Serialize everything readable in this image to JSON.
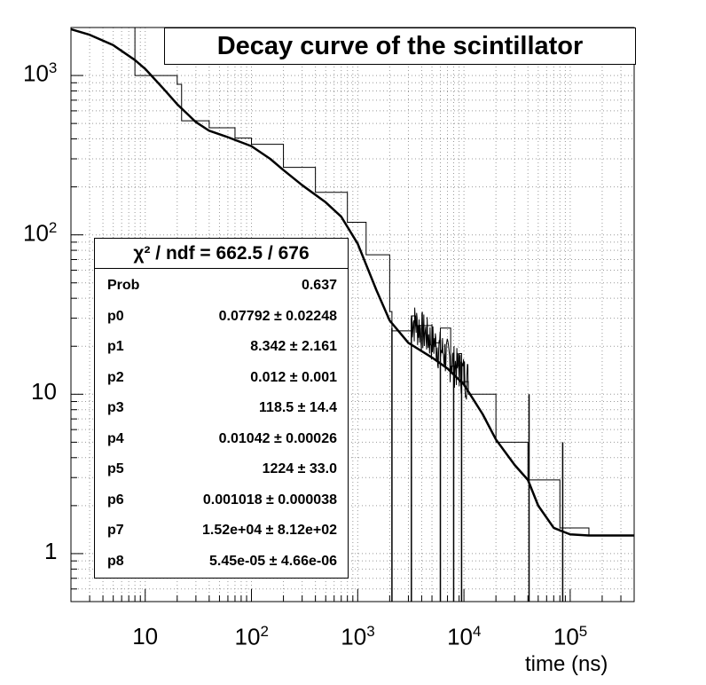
{
  "chart_data": {
    "type": "line",
    "title": "Decay curve of the scintillator",
    "xlabel": "time (ns)",
    "ylabel": "",
    "xscale": "log",
    "yscale": "log",
    "xlim": [
      2,
      400000
    ],
    "ylim": [
      0.5,
      2000
    ],
    "grid": true,
    "x_tick_labels": [
      {
        "base": "10",
        "exp": "",
        "value": 10
      },
      {
        "base": "10",
        "exp": "2",
        "value": 100
      },
      {
        "base": "10",
        "exp": "3",
        "value": 1000
      },
      {
        "base": "10",
        "exp": "4",
        "value": 10000
      },
      {
        "base": "10",
        "exp": "5",
        "value": 100000
      }
    ],
    "y_tick_labels": [
      {
        "base": "1",
        "exp": "",
        "value": 1
      },
      {
        "base": "10",
        "exp": "",
        "value": 10
      },
      {
        "base": "10",
        "exp": "2",
        "value": 100
      },
      {
        "base": "10",
        "exp": "3",
        "value": 1000
      }
    ],
    "series": [
      {
        "name": "fit",
        "style": "thick-line",
        "x": [
          2,
          3,
          5,
          8,
          10,
          15,
          20,
          30,
          40,
          60,
          100,
          150,
          200,
          300,
          500,
          700,
          1000,
          1500,
          2000,
          3000,
          5000,
          7000,
          10000,
          15000,
          20000,
          30000,
          40000,
          50000,
          70000,
          100000,
          150000,
          200000,
          400000
        ],
        "y": [
          1950,
          1800,
          1550,
          1250,
          1100,
          820,
          660,
          510,
          450,
          410,
          360,
          300,
          255,
          205,
          160,
          130,
          88,
          45,
          29,
          21,
          17,
          14.5,
          11.5,
          7.5,
          5.2,
          3.6,
          2.9,
          2.0,
          1.45,
          1.32,
          1.3,
          1.3,
          1.3
        ]
      },
      {
        "name": "histogram",
        "style": "step",
        "x": [
          2,
          8,
          8,
          20,
          20,
          22,
          22,
          40,
          40,
          70,
          100,
          200,
          400,
          800,
          1200,
          2000,
          2100,
          3200,
          3500,
          5000,
          6000,
          7500,
          9000,
          9500,
          11000,
          20000,
          40000,
          80000,
          150000,
          400000
        ],
        "y": [
          2000,
          2000,
          1000,
          1000,
          880,
          880,
          520,
          520,
          470,
          405,
          370,
          265,
          185,
          120,
          75,
          33,
          25,
          31,
          27,
          21,
          26,
          15,
          18,
          12,
          10,
          5.0,
          2.9,
          1.45,
          1.3,
          1.3
        ]
      }
    ],
    "spikes": [
      {
        "x": 2100,
        "y": 0.5,
        "top": 26
      },
      {
        "x": 3200,
        "y": 0.5,
        "top": 30
      },
      {
        "x": 6000,
        "y": 0.5,
        "top": 22
      },
      {
        "x": 8000,
        "y": 0.5,
        "top": 18
      },
      {
        "x": 9500,
        "y": 0.5,
        "top": 16
      },
      {
        "x": 41000,
        "y": 0.5,
        "top": 10
      },
      {
        "x": 85000,
        "y": 0.5,
        "top": 5
      }
    ],
    "stats": {
      "header": "χ² / ndf = 662.5 / 676",
      "rows": [
        {
          "key": "Prob",
          "value": "0.637"
        },
        {
          "key": "p0",
          "value": "0.07792 ± 0.02248"
        },
        {
          "key": "p1",
          "value": "8.342 ± 2.161"
        },
        {
          "key": "p2",
          "value": "0.012 ± 0.001"
        },
        {
          "key": "p3",
          "value": "118.5 ± 14.4"
        },
        {
          "key": "p4",
          "value": "0.01042 ± 0.00026"
        },
        {
          "key": "p5",
          "value": "1224 ± 33.0"
        },
        {
          "key": "p6",
          "value": "0.001018 ± 0.000038"
        },
        {
          "key": "p7",
          "value": "1.52e+04 ± 8.12e+02"
        },
        {
          "key": "p8",
          "value": "5.45e-05 ± 4.66e-06"
        }
      ]
    }
  }
}
